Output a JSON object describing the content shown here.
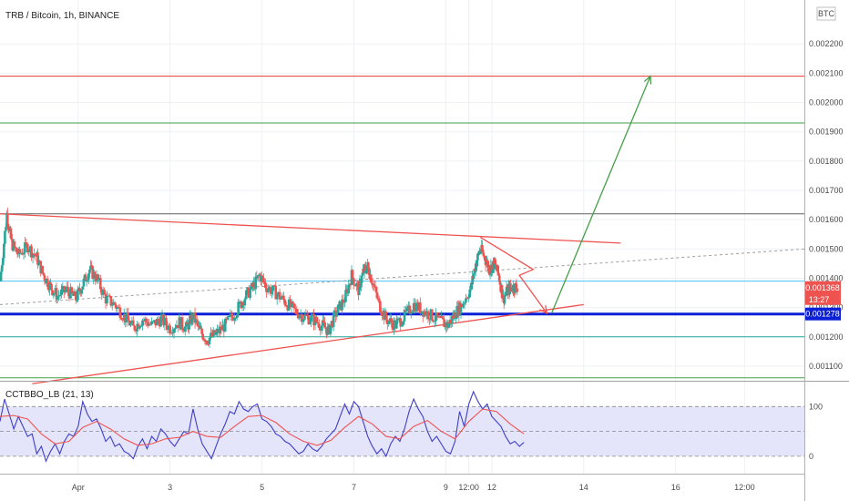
{
  "chart_data": [
    {
      "type": "candlestick",
      "title": "TRB / Bitcoin, 1h, BINANCE",
      "currency_badge": "BTC",
      "y_ticks": [
        "0.002200",
        "0.002100",
        "0.002000",
        "0.001900",
        "0.001800",
        "0.001700",
        "0.001600",
        "0.001500",
        "0.001400",
        "0.001300",
        "0.001200",
        "0.001100"
      ],
      "ylim": [
        0.00105,
        0.00235
      ],
      "x_ticks": [
        "Apr",
        "3",
        "5",
        "7",
        "9",
        "12:00",
        "12",
        "14",
        "16",
        "12:00"
      ],
      "x_tick_days": [
        1,
        3,
        5,
        7,
        9,
        9.5,
        10,
        12,
        14,
        15.5
      ],
      "xlim": [
        -0.7,
        16.8
      ],
      "price_label": {
        "value": "0.001368",
        "timer": "13:27",
        "color": "#ef5350"
      },
      "support_label": {
        "value": "0.001278",
        "color": "#0b1fd6"
      },
      "close_series": [
        [
          -0.7,
          0.00139
        ],
        [
          -0.55,
          0.00162
        ],
        [
          -0.45,
          0.00152
        ],
        [
          -0.3,
          0.00148
        ],
        [
          -0.1,
          0.00151
        ],
        [
          0.1,
          0.00147
        ],
        [
          0.25,
          0.00141
        ],
        [
          0.4,
          0.00137
        ],
        [
          0.55,
          0.00134
        ],
        [
          0.75,
          0.00136
        ],
        [
          0.95,
          0.00133
        ],
        [
          1.1,
          0.00138
        ],
        [
          1.25,
          0.00143
        ],
        [
          1.4,
          0.0014
        ],
        [
          1.6,
          0.00133
        ],
        [
          1.8,
          0.00131
        ],
        [
          2.0,
          0.00127
        ],
        [
          2.2,
          0.00123
        ],
        [
          2.4,
          0.00126
        ],
        [
          2.6,
          0.00124
        ],
        [
          2.8,
          0.00126
        ],
        [
          3.0,
          0.00123
        ],
        [
          3.2,
          0.00125
        ],
        [
          3.35,
          0.00123
        ],
        [
          3.5,
          0.00127
        ],
        [
          3.65,
          0.00122
        ],
        [
          3.8,
          0.00119
        ],
        [
          4.0,
          0.00121
        ],
        [
          4.2,
          0.00124
        ],
        [
          4.4,
          0.00128
        ],
        [
          4.6,
          0.00133
        ],
        [
          4.8,
          0.00137
        ],
        [
          4.95,
          0.00141
        ],
        [
          5.1,
          0.00137
        ],
        [
          5.3,
          0.00135
        ],
        [
          5.5,
          0.00132
        ],
        [
          5.7,
          0.00129
        ],
        [
          5.9,
          0.00127
        ],
        [
          6.1,
          0.00126
        ],
        [
          6.3,
          0.00124
        ],
        [
          6.45,
          0.00122
        ],
        [
          6.6,
          0.00128
        ],
        [
          6.8,
          0.00133
        ],
        [
          6.95,
          0.00141
        ],
        [
          7.1,
          0.00136
        ],
        [
          7.2,
          0.00142
        ],
        [
          7.3,
          0.00144
        ],
        [
          7.4,
          0.00139
        ],
        [
          7.55,
          0.00131
        ],
        [
          7.7,
          0.00126
        ],
        [
          7.9,
          0.00124
        ],
        [
          8.1,
          0.00127
        ],
        [
          8.3,
          0.00131
        ],
        [
          8.5,
          0.00129
        ],
        [
          8.7,
          0.00127
        ],
        [
          8.9,
          0.00125
        ],
        [
          9.05,
          0.00124
        ],
        [
          9.2,
          0.00128
        ],
        [
          9.35,
          0.00131
        ],
        [
          9.55,
          0.00137
        ],
        [
          9.65,
          0.00145
        ],
        [
          9.75,
          0.0015
        ],
        [
          9.85,
          0.00147
        ],
        [
          9.95,
          0.00143
        ],
        [
          10.05,
          0.00145
        ],
        [
          10.15,
          0.00141
        ],
        [
          10.25,
          0.00133
        ],
        [
          10.35,
          0.00136
        ],
        [
          10.45,
          0.00137
        ],
        [
          10.55,
          0.00137
        ]
      ],
      "levels": [
        {
          "price": 0.00209,
          "color": "#e53935",
          "kind": "horizontal"
        },
        {
          "price": 0.00193,
          "color": "#43a047",
          "kind": "horizontal"
        },
        {
          "price": 0.00162,
          "color": "#616161",
          "kind": "horizontal"
        },
        {
          "price": 0.00139,
          "color": "#4fc3f7",
          "kind": "horizontal"
        },
        {
          "price": 0.001278,
          "color": "#0b1fd6",
          "kind": "horizontal"
        },
        {
          "price": 0.0012,
          "color": "#26a69a",
          "kind": "horizontal"
        },
        {
          "price": 0.00106,
          "color": "#43a047",
          "kind": "horizontal"
        }
      ],
      "trendlines": [
        {
          "from": [
            -0.7,
            0.00162
          ],
          "to": [
            12.8,
            0.00152
          ],
          "color": "#ef5350"
        },
        {
          "from": [
            0.0,
            0.00104
          ],
          "to": [
            12.0,
            0.00131
          ],
          "color": "#ef5350"
        },
        {
          "from": [
            -0.7,
            0.00131
          ],
          "to": [
            16.8,
            0.0015
          ],
          "color": "#9e9e9e",
          "dashed": true
        }
      ],
      "arrows": [
        {
          "points": [
            [
              9.75,
              0.00154
            ],
            [
              10.9,
              0.00143
            ],
            [
              10.6,
              0.00141
            ],
            [
              11.2,
              0.00128
            ]
          ],
          "color": "#ef5350"
        },
        {
          "points": [
            [
              11.3,
              0.00128
            ],
            [
              13.45,
              0.00209
            ]
          ],
          "color": "#43a047"
        }
      ]
    },
    {
      "type": "line",
      "title": "CCTBBO_LB (21, 13)",
      "y_ticks": [
        "100",
        "0"
      ],
      "y_tick_values": [
        100,
        0
      ],
      "ylim": [
        -35,
        150
      ],
      "band": [
        0,
        100
      ],
      "midline": 50,
      "series": [
        {
          "color": "#3f3fc6",
          "values": [
            [
              -0.7,
              70
            ],
            [
              -0.6,
              115
            ],
            [
              -0.5,
              85
            ],
            [
              -0.4,
              55
            ],
            [
              -0.3,
              80
            ],
            [
              -0.2,
              60
            ],
            [
              -0.1,
              40
            ],
            [
              0.0,
              45
            ],
            [
              0.1,
              5
            ],
            [
              0.2,
              20
            ],
            [
              0.3,
              -10
            ],
            [
              0.4,
              10
            ],
            [
              0.5,
              25
            ],
            [
              0.6,
              5
            ],
            [
              0.7,
              30
            ],
            [
              0.8,
              45
            ],
            [
              0.9,
              40
            ],
            [
              1.0,
              60
            ],
            [
              1.1,
              110
            ],
            [
              1.2,
              85
            ],
            [
              1.3,
              70
            ],
            [
              1.4,
              75
            ],
            [
              1.5,
              55
            ],
            [
              1.6,
              30
            ],
            [
              1.7,
              40
            ],
            [
              1.8,
              20
            ],
            [
              1.9,
              25
            ],
            [
              2.0,
              10
            ],
            [
              2.1,
              5
            ],
            [
              2.2,
              -5
            ],
            [
              2.3,
              20
            ],
            [
              2.4,
              35
            ],
            [
              2.5,
              15
            ],
            [
              2.6,
              40
            ],
            [
              2.7,
              30
            ],
            [
              2.8,
              55
            ],
            [
              2.9,
              45
            ],
            [
              3.0,
              30
            ],
            [
              3.1,
              20
            ],
            [
              3.2,
              35
            ],
            [
              3.3,
              50
            ],
            [
              3.4,
              45
            ],
            [
              3.5,
              95
            ],
            [
              3.6,
              55
            ],
            [
              3.7,
              25
            ],
            [
              3.8,
              10
            ],
            [
              3.9,
              -5
            ],
            [
              4.0,
              20
            ],
            [
              4.1,
              45
            ],
            [
              4.2,
              65
            ],
            [
              4.3,
              90
            ],
            [
              4.4,
              85
            ],
            [
              4.5,
              110
            ],
            [
              4.6,
              95
            ],
            [
              4.7,
              90
            ],
            [
              4.8,
              100
            ],
            [
              4.9,
              105
            ],
            [
              5.0,
              75
            ],
            [
              5.1,
              70
            ],
            [
              5.2,
              60
            ],
            [
              5.3,
              45
            ],
            [
              5.4,
              40
            ],
            [
              5.5,
              30
            ],
            [
              5.6,
              25
            ],
            [
              5.7,
              15
            ],
            [
              5.8,
              5
            ],
            [
              5.9,
              10
            ],
            [
              6.0,
              25
            ],
            [
              6.1,
              15
            ],
            [
              6.2,
              10
            ],
            [
              6.3,
              20
            ],
            [
              6.4,
              35
            ],
            [
              6.5,
              45
            ],
            [
              6.6,
              55
            ],
            [
              6.7,
              80
            ],
            [
              6.8,
              105
            ],
            [
              6.9,
              85
            ],
            [
              7.0,
              110
            ],
            [
              7.1,
              100
            ],
            [
              7.2,
              70
            ],
            [
              7.3,
              40
            ],
            [
              7.4,
              20
            ],
            [
              7.5,
              5
            ],
            [
              7.6,
              15
            ],
            [
              7.7,
              0
            ],
            [
              7.8,
              25
            ],
            [
              7.9,
              40
            ],
            [
              8.0,
              30
            ],
            [
              8.1,
              55
            ],
            [
              8.2,
              90
            ],
            [
              8.3,
              115
            ],
            [
              8.4,
              95
            ],
            [
              8.5,
              80
            ],
            [
              8.6,
              50
            ],
            [
              8.7,
              30
            ],
            [
              8.8,
              40
            ],
            [
              8.9,
              25
            ],
            [
              9.0,
              10
            ],
            [
              9.1,
              5
            ],
            [
              9.2,
              30
            ],
            [
              9.3,
              90
            ],
            [
              9.4,
              60
            ],
            [
              9.5,
              105
            ],
            [
              9.6,
              130
            ],
            [
              9.7,
              110
            ],
            [
              9.8,
              95
            ],
            [
              9.9,
              105
            ],
            [
              10.0,
              80
            ],
            [
              10.1,
              70
            ],
            [
              10.2,
              60
            ],
            [
              10.3,
              40
            ],
            [
              10.4,
              25
            ],
            [
              10.5,
              30
            ],
            [
              10.6,
              20
            ],
            [
              10.7,
              28
            ]
          ]
        },
        {
          "color": "#ef5350",
          "values": [
            [
              -0.7,
              80
            ],
            [
              -0.4,
              82
            ],
            [
              -0.1,
              75
            ],
            [
              0.2,
              45
            ],
            [
              0.5,
              25
            ],
            [
              0.8,
              30
            ],
            [
              1.1,
              58
            ],
            [
              1.4,
              70
            ],
            [
              1.7,
              55
            ],
            [
              2.0,
              35
            ],
            [
              2.3,
              22
            ],
            [
              2.6,
              25
            ],
            [
              2.9,
              35
            ],
            [
              3.2,
              38
            ],
            [
              3.5,
              50
            ],
            [
              3.8,
              40
            ],
            [
              4.1,
              38
            ],
            [
              4.4,
              60
            ],
            [
              4.7,
              80
            ],
            [
              5.0,
              82
            ],
            [
              5.3,
              68
            ],
            [
              5.6,
              45
            ],
            [
              5.9,
              30
            ],
            [
              6.2,
              22
            ],
            [
              6.5,
              32
            ],
            [
              6.8,
              58
            ],
            [
              7.1,
              80
            ],
            [
              7.4,
              65
            ],
            [
              7.7,
              40
            ],
            [
              8.0,
              35
            ],
            [
              8.3,
              60
            ],
            [
              8.6,
              72
            ],
            [
              8.9,
              50
            ],
            [
              9.2,
              35
            ],
            [
              9.5,
              70
            ],
            [
              9.8,
              95
            ],
            [
              10.1,
              90
            ],
            [
              10.4,
              65
            ],
            [
              10.7,
              45
            ]
          ]
        }
      ]
    }
  ]
}
